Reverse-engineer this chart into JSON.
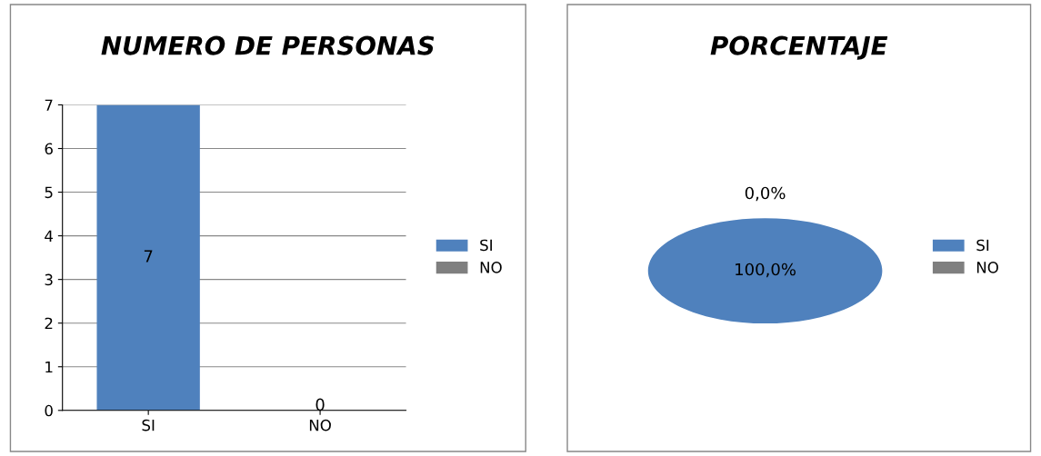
{
  "chart_data": [
    {
      "type": "bar",
      "title": "NUMERO DE PERSONAS",
      "categories": [
        "SI",
        "NO"
      ],
      "series": [
        {
          "name": "SI",
          "color": "#4f81bd",
          "values": [
            7,
            null
          ]
        },
        {
          "name": "NO",
          "color": "#7f7f7f",
          "values": [
            null,
            0
          ]
        }
      ],
      "ylim": [
        0,
        7
      ],
      "yticks": [
        0,
        1,
        2,
        3,
        4,
        5,
        6,
        7
      ],
      "grid": "y",
      "legend": "right",
      "data_labels": true
    },
    {
      "type": "pie",
      "title": "PORCENTAJE",
      "categories": [
        "SI",
        "NO"
      ],
      "values": [
        100,
        0
      ],
      "colors": [
        "#4f81bd",
        "#7f7f7f"
      ],
      "value_labels": [
        "100,0%",
        "0,0%"
      ],
      "legend": "right"
    }
  ]
}
